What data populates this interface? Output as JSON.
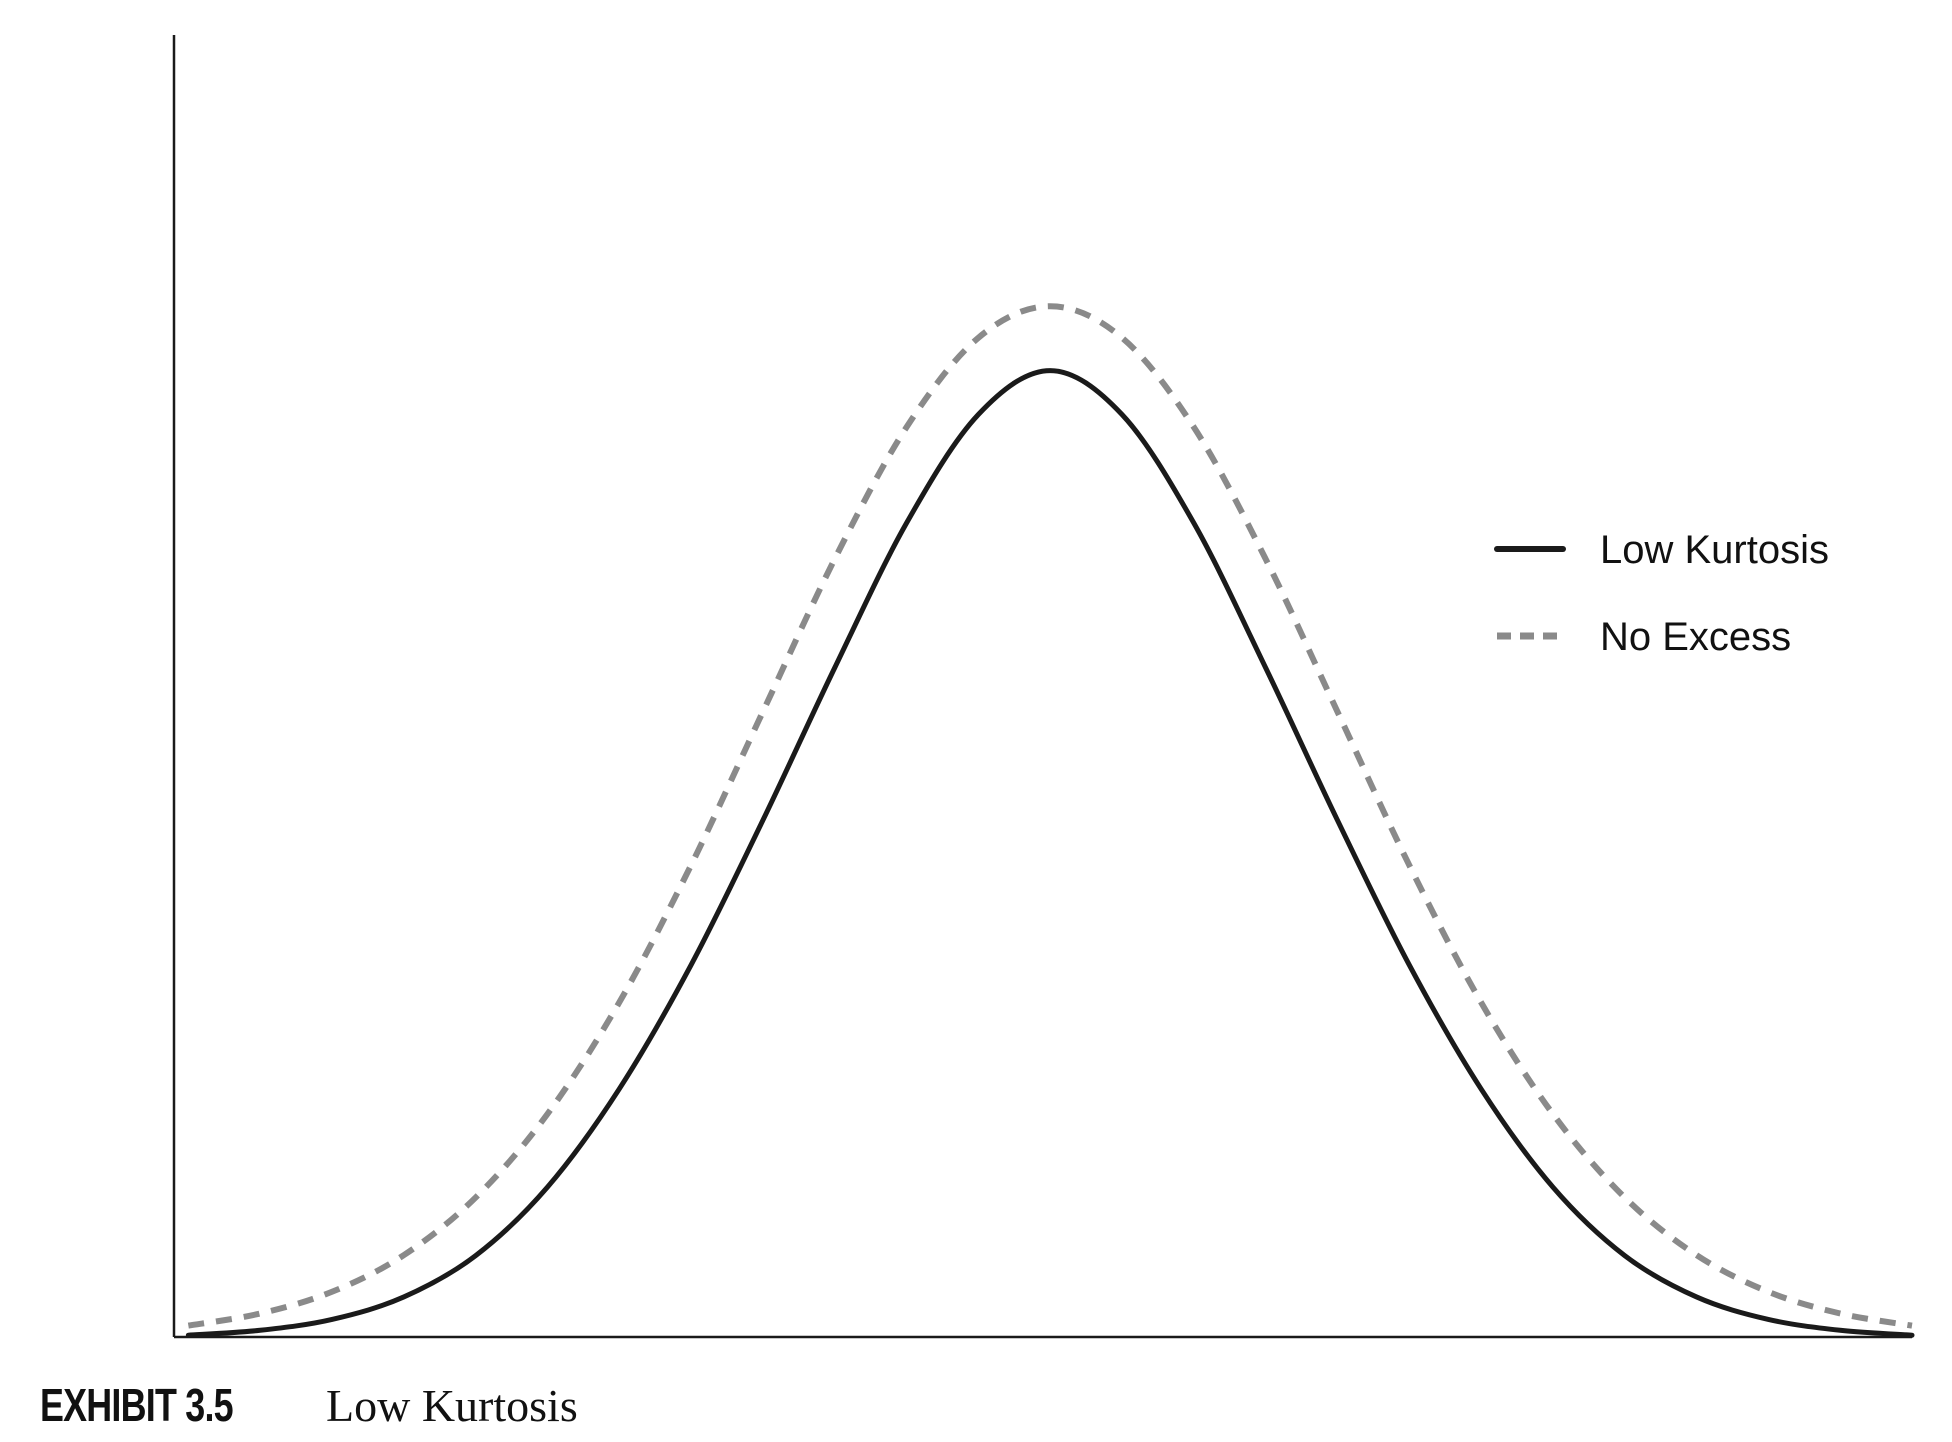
{
  "chart_data": {
    "type": "line",
    "title": "",
    "xlabel": "",
    "ylabel": "",
    "x": [
      -3,
      -2.75,
      -2.5,
      -2.25,
      -2,
      -1.75,
      -1.5,
      -1.25,
      -1,
      -0.75,
      -0.5,
      -0.25,
      0,
      0.25,
      0.5,
      0.75,
      1,
      1.25,
      1.5,
      1.75,
      2,
      2.25,
      2.5,
      2.75,
      3
    ],
    "xlim": [
      -3.05,
      3
    ],
    "ylim": [
      0,
      0.5
    ],
    "grid": false,
    "legend_position": "right",
    "series": [
      {
        "name": "Low Kurtosis",
        "color": "#1a1a1a",
        "style": "solid",
        "values": [
          0.0007,
          0.0026,
          0.0068,
          0.0155,
          0.0315,
          0.058,
          0.096,
          0.144,
          0.2,
          0.259,
          0.315,
          0.357,
          0.374,
          0.357,
          0.315,
          0.259,
          0.2,
          0.144,
          0.096,
          0.058,
          0.0315,
          0.0155,
          0.0068,
          0.0026,
          0.0007
        ]
      },
      {
        "name": "No Excess",
        "color": "#8a8a8a",
        "style": "dashed",
        "values": [
          0.0044,
          0.0091,
          0.0175,
          0.0317,
          0.054,
          0.0863,
          0.1295,
          0.1826,
          0.242,
          0.3011,
          0.3521,
          0.3867,
          0.3989,
          0.3867,
          0.3521,
          0.3011,
          0.242,
          0.1826,
          0.1295,
          0.0863,
          0.054,
          0.0317,
          0.0175,
          0.0091,
          0.0044
        ]
      }
    ],
    "legend": [
      {
        "label": "Low Kurtosis",
        "style": "solid",
        "color": "#1a1a1a"
      },
      {
        "label": "No Excess",
        "style": "dashed",
        "color": "#8a8a8a"
      }
    ]
  },
  "caption": {
    "label": "EXHIBIT 3.5",
    "title": "Low Kurtosis"
  }
}
